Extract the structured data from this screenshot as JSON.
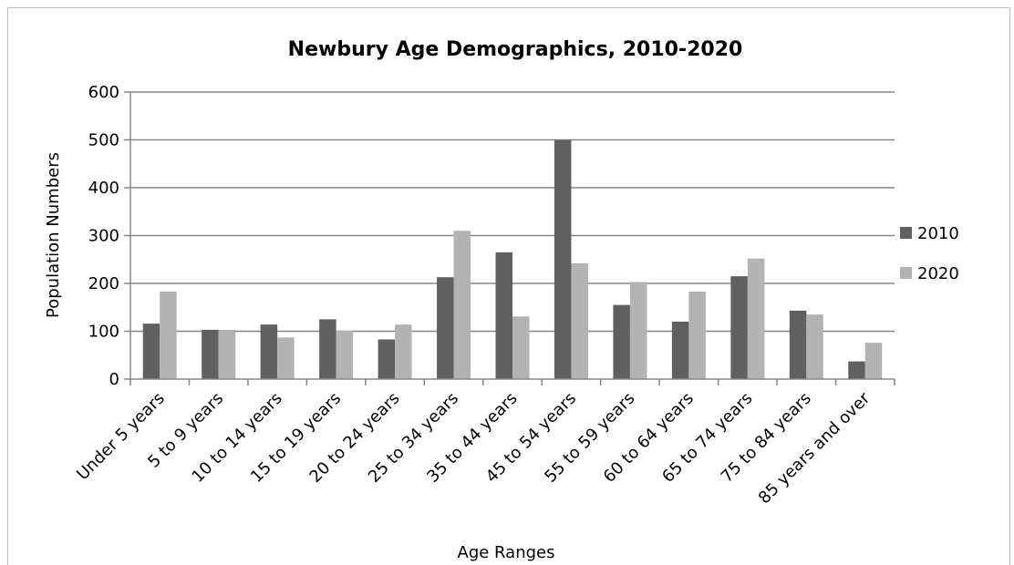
{
  "chart_data": {
    "type": "bar",
    "title": "Newbury Age Demographics, 2010-2020",
    "xlabel": "Age Ranges",
    "ylabel": "Population Numbers",
    "ylim": [
      0,
      600
    ],
    "yticks": [
      0,
      100,
      200,
      300,
      400,
      500,
      600
    ],
    "grid": true,
    "legend_position": "right",
    "categories": [
      "Under 5 years",
      "5 to 9 years",
      "10 to 14 years",
      "15 to 19 years",
      "20 to 24 years",
      "25 to 34 years",
      "35 to 44 years",
      "45 to 54 years",
      "55 to 59 years",
      "60 to 64 years",
      "65 to 74 years",
      "75 to 84 years",
      "85 years and over"
    ],
    "series": [
      {
        "name": "2010",
        "color": "#606060",
        "values": [
          116,
          103,
          114,
          125,
          83,
          213,
          265,
          500,
          155,
          120,
          215,
          143,
          37
        ]
      },
      {
        "name": "2020",
        "color": "#b3b3b3",
        "values": [
          183,
          103,
          87,
          101,
          114,
          310,
          131,
          242,
          203,
          183,
          252,
          135,
          76
        ]
      }
    ]
  }
}
